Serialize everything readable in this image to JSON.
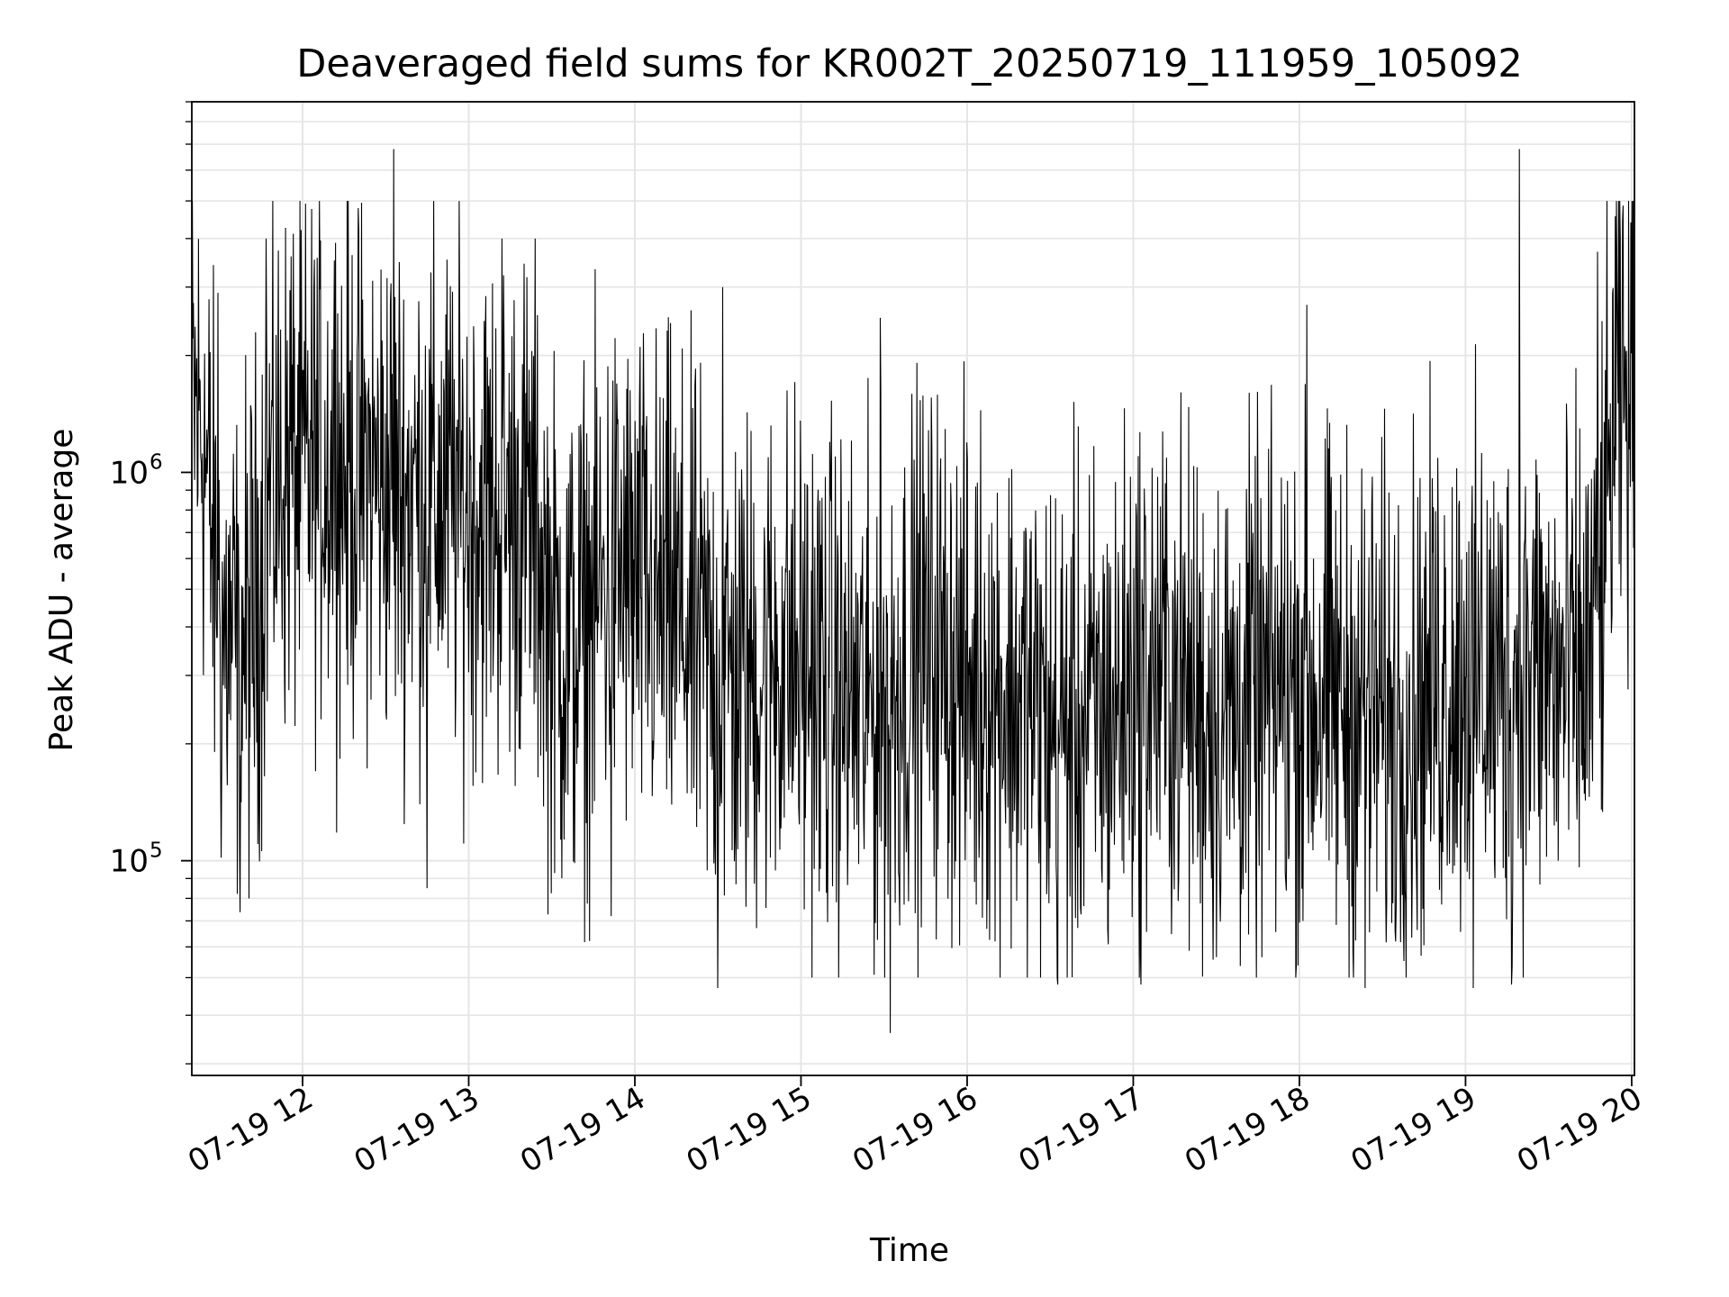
{
  "chart_data": {
    "type": "line",
    "title": "Deaveraged field sums for KR002T_20250719_111959_105092",
    "xlabel": "Time",
    "ylabel": "Peak ADU - average",
    "x_scale": "time",
    "y_scale": "log",
    "xlim": [
      "2025-07-19T11:20:00",
      "2025-07-19T20:01:00"
    ],
    "ylim": [
      28000,
      9000000
    ],
    "x_tick_labels": [
      "07-19 12",
      "07-19 13",
      "07-19 14",
      "07-19 15",
      "07-19 16",
      "07-19 17",
      "07-19 18",
      "07-19 19",
      "07-19 20"
    ],
    "x_tick_hours": [
      12,
      13,
      14,
      15,
      16,
      17,
      18,
      19,
      20
    ],
    "y_tick_labels": [
      {
        "base": "10",
        "exp": "5",
        "value": 100000
      },
      {
        "base": "10",
        "exp": "6",
        "value": 1000000
      }
    ],
    "grid": true,
    "line_color": "#000000",
    "grid_color": "#e5e5e5",
    "series": [
      {
        "x_hours": [
          11.333,
          11.4,
          11.5,
          11.6,
          11.7,
          11.8,
          11.9,
          12.0,
          12.1,
          12.2,
          12.3,
          12.4,
          12.5,
          12.6,
          12.7,
          12.8,
          12.9,
          13.0,
          13.1,
          13.2,
          13.3,
          13.4,
          13.5,
          13.6,
          13.7,
          13.8,
          13.9,
          14.0,
          14.1,
          14.2,
          14.3,
          14.4,
          14.5,
          14.6,
          14.7,
          14.8,
          14.9,
          15.0,
          15.1,
          15.2,
          15.3,
          15.4,
          15.5,
          15.6,
          15.7,
          15.8,
          15.9,
          16.0,
          16.1,
          16.2,
          16.3,
          16.4,
          16.5,
          16.6,
          16.7,
          16.8,
          16.9,
          17.0,
          17.1,
          17.2,
          17.3,
          17.4,
          17.5,
          17.6,
          17.7,
          17.8,
          17.9,
          18.0,
          18.1,
          18.2,
          18.3,
          18.4,
          18.5,
          18.6,
          18.7,
          18.8,
          18.9,
          19.0,
          19.1,
          19.2,
          19.3,
          19.4,
          19.5,
          19.6,
          19.7,
          19.8,
          19.9,
          20.0
        ],
        "level_median": [
          1500000,
          1300000,
          400000,
          350000,
          400000,
          900000,
          1000000,
          1000000,
          1100000,
          1050000,
          1000000,
          1000000,
          950000,
          900000,
          900000,
          850000,
          850000,
          800000,
          800000,
          800000,
          800000,
          750000,
          400000,
          350000,
          400000,
          500000,
          550000,
          500000,
          450000,
          450000,
          400000,
          350000,
          300000,
          300000,
          300000,
          320000,
          350000,
          320000,
          300000,
          280000,
          250000,
          250000,
          250000,
          300000,
          350000,
          350000,
          320000,
          280000,
          300000,
          280000,
          260000,
          250000,
          220000,
          220000,
          230000,
          230000,
          250000,
          300000,
          300000,
          300000,
          280000,
          250000,
          240000,
          240000,
          250000,
          260000,
          280000,
          280000,
          270000,
          260000,
          250000,
          250000,
          240000,
          230000,
          250000,
          280000,
          300000,
          320000,
          300000,
          280000,
          300000,
          320000,
          300000,
          280000,
          300000,
          400000,
          1500000,
          1500000
        ],
        "peaks": [
          {
            "hour": 11.49,
            "value": 2900000
          },
          {
            "hour": 11.78,
            "value": 4000000
          },
          {
            "hour": 11.93,
            "value": 3600000
          },
          {
            "hour": 12.2,
            "value": 3900000
          },
          {
            "hour": 12.55,
            "value": 6800000
          },
          {
            "hour": 13.2,
            "value": 4000000
          },
          {
            "hour": 13.4,
            "value": 4000000
          },
          {
            "hour": 14.53,
            "value": 3000000
          },
          {
            "hour": 15.48,
            "value": 2500000
          },
          {
            "hour": 18.05,
            "value": 2700000
          },
          {
            "hour": 19.33,
            "value": 6800000
          },
          {
            "hour": 19.8,
            "value": 3700000
          },
          {
            "hour": 20.0,
            "value": 4400000
          }
        ],
        "troughs": [
          {
            "hour": 11.62,
            "value": 110000
          },
          {
            "hour": 12.75,
            "value": 85000
          },
          {
            "hour": 13.86,
            "value": 72000
          },
          {
            "hour": 14.5,
            "value": 47000
          },
          {
            "hour": 15.54,
            "value": 36000
          },
          {
            "hour": 16.55,
            "value": 48000
          },
          {
            "hour": 17.05,
            "value": 48000
          },
          {
            "hour": 18.4,
            "value": 47000
          },
          {
            "hour": 19.05,
            "value": 47000
          },
          {
            "hour": 19.28,
            "value": 48000
          }
        ]
      }
    ]
  }
}
